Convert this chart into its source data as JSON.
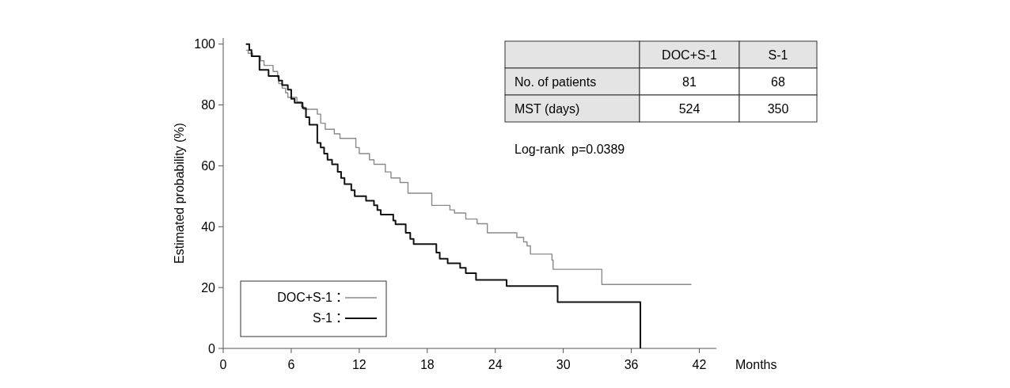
{
  "chart_data": {
    "type": "step",
    "ylabel": "Estimated probability (%)",
    "xlabel": "Months",
    "xlim": [
      0,
      43.5
    ],
    "xticks": [
      0,
      6,
      12,
      18,
      24,
      30,
      36,
      42
    ],
    "ylim": [
      0,
      102
    ],
    "yticks": [
      0,
      20,
      40,
      60,
      80,
      100
    ],
    "legend": "bottom left",
    "grid": false,
    "series": [
      {
        "name": "DOC+S-1",
        "color": "#8a8a8a",
        "x": [
          2.0,
          2.2,
          2.6,
          3.3,
          3.6,
          4.4,
          4.8,
          4.9,
          5.2,
          5.5,
          5.7,
          6.5,
          6.9,
          7.1,
          8.3,
          8.6,
          9.0,
          9.8,
          10.3,
          11.7,
          12.0,
          12.9,
          13.3,
          14.3,
          14.8,
          15.6,
          16.3,
          18.4,
          20.0,
          20.4,
          21.4,
          22.4,
          23.3,
          25.9,
          26.5,
          26.8,
          27.1,
          29.0,
          29.1,
          33.4,
          41.3
        ],
        "values": [
          98,
          97,
          96,
          94.5,
          93,
          91,
          89,
          87,
          85.5,
          84,
          82.5,
          81,
          79.5,
          78.6,
          77,
          74,
          72,
          70.5,
          69,
          66,
          64,
          62,
          60.5,
          58,
          56,
          54.5,
          51,
          47,
          45.5,
          44.5,
          42.5,
          41,
          38,
          36.5,
          35,
          33.7,
          31,
          29,
          26,
          21,
          21
        ]
      },
      {
        "name": "S-1",
        "color": "#111111",
        "x": [
          2.0,
          2.3,
          2.5,
          3.2,
          4.0,
          4.9,
          5.2,
          5.7,
          6.0,
          6.3,
          7.0,
          7.3,
          7.6,
          8.3,
          8.6,
          8.9,
          9.2,
          9.6,
          10.1,
          10.4,
          10.7,
          11.3,
          11.6,
          12.6,
          13.3,
          13.6,
          13.9,
          15.0,
          15.2,
          16.1,
          16.5,
          16.8,
          18.8,
          19.1,
          19.8,
          20.9,
          21.4,
          22.3,
          25.0,
          29.5,
          36.8
        ],
        "values": [
          100,
          98,
          96,
          91.5,
          89.5,
          88,
          86.5,
          85,
          82,
          80.7,
          79,
          76,
          73.5,
          67.5,
          66,
          64,
          62,
          60.5,
          58,
          56,
          54,
          52,
          50,
          48.5,
          47,
          45.5,
          44,
          42,
          40.8,
          38,
          36,
          34.3,
          31.5,
          29.5,
          28,
          26.5,
          24.7,
          22.5,
          20.5,
          15.2,
          0
        ]
      }
    ],
    "annotations": [
      "DOC+S-1",
      "S-1",
      "No. of patients",
      "81",
      "68",
      "MST (days)",
      "524",
      "350",
      "Log-rank  p=0.0389"
    ]
  }
}
